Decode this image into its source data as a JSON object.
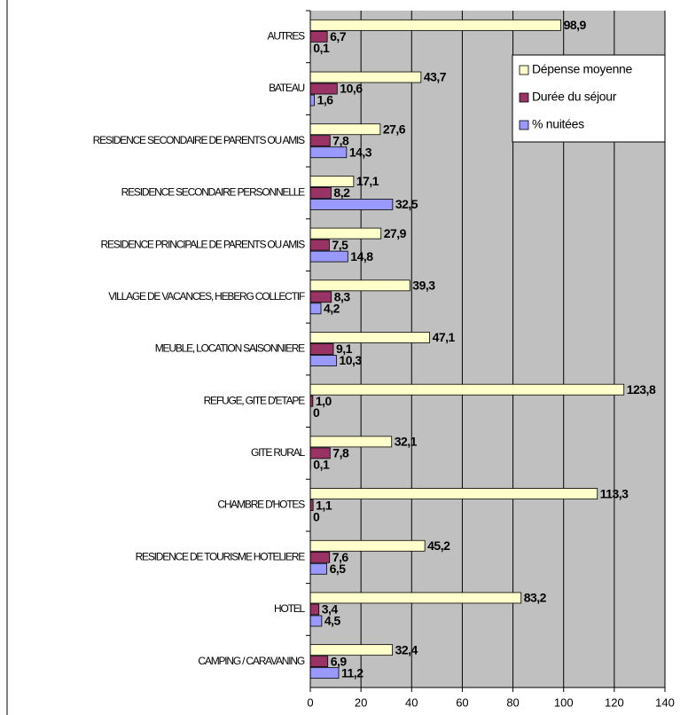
{
  "chart_data": {
    "type": "bar",
    "orientation": "horizontal",
    "categories": [
      "AUTRES",
      "BATEAU",
      "RESIDENCE SECONDAIRE DE PARENTS OU AMIS",
      "RESIDENCE SECONDAIRE PERSONNELLE",
      "RESIDENCE PRINCIPALE DE PARENTS OU AMIS",
      "VILLAGE DE VACANCES, HEBERG COLLECTIF",
      "MEUBLE, LOCATION SAISONNIERE",
      "REFUGE, GITE D'ETAPE",
      "GITE RURAL",
      "CHAMBRE D'HOTES",
      "RESIDENCE DE TOURISME HOTELIERE",
      "HOTEL",
      "CAMPING / CARAVANING"
    ],
    "series": [
      {
        "name": "Dépense moyenne",
        "color": "#ffffcc",
        "values": [
          98.9,
          43.7,
          27.6,
          17.1,
          27.9,
          39.3,
          47.1,
          123.8,
          32.1,
          113.3,
          45.2,
          83.2,
          32.4
        ],
        "value_labels": [
          "98,9",
          "43,7",
          "27,6",
          "17,1",
          "27,9",
          "39,3",
          "47,1",
          "123,8",
          "32,1",
          "113,3",
          "45,2",
          "83,2",
          "32,4"
        ]
      },
      {
        "name": "Durée du séjour",
        "color": "#993366",
        "values": [
          6.7,
          10.6,
          7.8,
          8.2,
          7.5,
          8.3,
          9.1,
          1.0,
          7.8,
          1.1,
          7.6,
          3.4,
          6.9
        ],
        "value_labels": [
          "6,7",
          "10,6",
          "7,8",
          "8,2",
          "7,5",
          "8,3",
          "9,1",
          "1,0",
          "7,8",
          "1,1",
          "7,6",
          "3,4",
          "6,9"
        ]
      },
      {
        "name": "% nuitées",
        "color": "#9999ff",
        "values": [
          0.1,
          1.6,
          14.3,
          32.5,
          14.8,
          4.2,
          10.3,
          0,
          0.1,
          0,
          6.5,
          4.5,
          11.2
        ],
        "value_labels": [
          "0,1",
          "1,6",
          "14,3",
          "32,5",
          "14,8",
          "4,2",
          "10,3",
          "0",
          "0,1",
          "0",
          "6,5",
          "4,5",
          "11,2"
        ]
      }
    ],
    "xlim": [
      0,
      140
    ],
    "xticks": [
      0,
      20,
      40,
      60,
      80,
      100,
      120,
      140
    ],
    "grid": true,
    "legend": "upper right"
  }
}
